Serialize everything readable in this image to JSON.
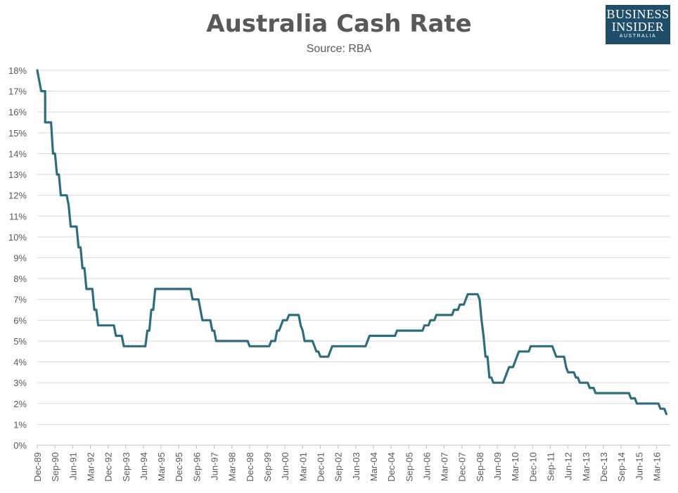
{
  "chart_data": {
    "type": "line",
    "title": "Australia Cash Rate",
    "subtitle": "Source: RBA",
    "xlabel": "",
    "ylabel": "",
    "ylim": [
      0,
      18
    ],
    "yticks": [
      "0%",
      "1%",
      "2%",
      "3%",
      "4%",
      "5%",
      "6%",
      "7%",
      "8%",
      "9%",
      "10%",
      "11%",
      "12%",
      "13%",
      "14%",
      "15%",
      "16%",
      "17%",
      "18%"
    ],
    "xticks": [
      "Dec-89",
      "Sep-90",
      "Jun-91",
      "Mar-92",
      "Dec-92",
      "Sep-93",
      "Jun-94",
      "Mar-95",
      "Dec-95",
      "Sep-96",
      "Jun-97",
      "Mar-98",
      "Dec-98",
      "Sep-99",
      "Jun-00",
      "Mar-01",
      "Dec-01",
      "Sep-02",
      "Jun-03",
      "Mar-04",
      "Dec-04",
      "Sep-05",
      "Jun-06",
      "Mar-07",
      "Dec-07",
      "Sep-08",
      "Jun-09",
      "Mar-10",
      "Dec-10",
      "Sep-11",
      "Jun-12",
      "Mar-13",
      "Dec-13",
      "Sep-14",
      "Jun-15",
      "Mar-16"
    ],
    "grid": true,
    "legend": "none",
    "line_color": "#2e6d7b",
    "series": [
      {
        "points": [
          [
            "Dec-89",
            18.0
          ],
          [
            "Jan-90",
            17.5
          ],
          [
            "Feb-90",
            17.0
          ],
          [
            "Apr-90",
            17.0
          ],
          [
            "Apr-90",
            15.5
          ],
          [
            "Jul-90",
            15.5
          ],
          [
            "Aug-90",
            14.0
          ],
          [
            "Sep-90",
            14.0
          ],
          [
            "Oct-90",
            13.0
          ],
          [
            "Nov-90",
            13.0
          ],
          [
            "Dec-90",
            12.0
          ],
          [
            "Mar-91",
            12.0
          ],
          [
            "Apr-91",
            11.5
          ],
          [
            "May-91",
            10.5
          ],
          [
            "Aug-91",
            10.5
          ],
          [
            "Sep-91",
            9.5
          ],
          [
            "Oct-91",
            9.5
          ],
          [
            "Nov-91",
            8.5
          ],
          [
            "Dec-91",
            8.5
          ],
          [
            "Jan-92",
            7.5
          ],
          [
            "Apr-92",
            7.5
          ],
          [
            "May-92",
            6.5
          ],
          [
            "Jun-92",
            6.5
          ],
          [
            "Jul-92",
            5.75
          ],
          [
            "Dec-92",
            5.75
          ],
          [
            "Mar-93",
            5.75
          ],
          [
            "Apr-93",
            5.25
          ],
          [
            "Jul-93",
            5.25
          ],
          [
            "Aug-93",
            4.75
          ],
          [
            "Jul-94",
            4.75
          ],
          [
            "Aug-94",
            5.5
          ],
          [
            "Sep-94",
            5.5
          ],
          [
            "Oct-94",
            6.5
          ],
          [
            "Nov-94",
            6.5
          ],
          [
            "Dec-94",
            7.5
          ],
          [
            "Jun-96",
            7.5
          ],
          [
            "Jul-96",
            7.0
          ],
          [
            "Oct-96",
            7.0
          ],
          [
            "Nov-96",
            6.5
          ],
          [
            "Dec-96",
            6.0
          ],
          [
            "Apr-97",
            6.0
          ],
          [
            "May-97",
            5.5
          ],
          [
            "Jun-97",
            5.5
          ],
          [
            "Jul-97",
            5.0
          ],
          [
            "Nov-98",
            5.0
          ],
          [
            "Dec-98",
            4.75
          ],
          [
            "Oct-99",
            4.75
          ],
          [
            "Nov-99",
            5.0
          ],
          [
            "Jan-00",
            5.0
          ],
          [
            "Feb-00",
            5.5
          ],
          [
            "Mar-00",
            5.5
          ],
          [
            "Apr-00",
            5.75
          ],
          [
            "May-00",
            6.0
          ],
          [
            "Jul-00",
            6.0
          ],
          [
            "Aug-00",
            6.25
          ],
          [
            "Jan-01",
            6.25
          ],
          [
            "Feb-01",
            5.75
          ],
          [
            "Mar-01",
            5.5
          ],
          [
            "Apr-01",
            5.0
          ],
          [
            "Aug-01",
            5.0
          ],
          [
            "Sep-01",
            4.75
          ],
          [
            "Oct-01",
            4.5
          ],
          [
            "Nov-01",
            4.5
          ],
          [
            "Dec-01",
            4.25
          ],
          [
            "Apr-02",
            4.25
          ],
          [
            "May-02",
            4.5
          ],
          [
            "Jun-02",
            4.75
          ],
          [
            "Nov-03",
            4.75
          ],
          [
            "Dec-03",
            5.0
          ],
          [
            "Jan-04",
            5.25
          ],
          [
            "Feb-05",
            5.25
          ],
          [
            "Mar-05",
            5.5
          ],
          [
            "Apr-06",
            5.5
          ],
          [
            "May-06",
            5.75
          ],
          [
            "Jul-06",
            5.75
          ],
          [
            "Aug-06",
            6.0
          ],
          [
            "Oct-06",
            6.0
          ],
          [
            "Nov-06",
            6.25
          ],
          [
            "Jul-07",
            6.25
          ],
          [
            "Aug-07",
            6.5
          ],
          [
            "Oct-07",
            6.5
          ],
          [
            "Nov-07",
            6.75
          ],
          [
            "Jan-08",
            6.75
          ],
          [
            "Feb-08",
            7.0
          ],
          [
            "Mar-08",
            7.25
          ],
          [
            "Aug-08",
            7.25
          ],
          [
            "Sep-08",
            7.0
          ],
          [
            "Oct-08",
            6.0
          ],
          [
            "Nov-08",
            5.25
          ],
          [
            "Dec-08",
            4.25
          ],
          [
            "Jan-09",
            4.25
          ],
          [
            "Feb-09",
            3.25
          ],
          [
            "Mar-09",
            3.25
          ],
          [
            "Apr-09",
            3.0
          ],
          [
            "Sep-09",
            3.0
          ],
          [
            "Oct-09",
            3.25
          ],
          [
            "Nov-09",
            3.5
          ],
          [
            "Dec-09",
            3.75
          ],
          [
            "Feb-10",
            3.75
          ],
          [
            "Mar-10",
            4.0
          ],
          [
            "Apr-10",
            4.25
          ],
          [
            "May-10",
            4.5
          ],
          [
            "Oct-10",
            4.5
          ],
          [
            "Nov-10",
            4.75
          ],
          [
            "Oct-11",
            4.75
          ],
          [
            "Nov-11",
            4.5
          ],
          [
            "Dec-11",
            4.25
          ],
          [
            "Apr-12",
            4.25
          ],
          [
            "May-12",
            3.75
          ],
          [
            "Jun-12",
            3.5
          ],
          [
            "Sep-12",
            3.5
          ],
          [
            "Oct-12",
            3.25
          ],
          [
            "Nov-12",
            3.25
          ],
          [
            "Dec-12",
            3.0
          ],
          [
            "Apr-13",
            3.0
          ],
          [
            "May-13",
            2.75
          ],
          [
            "Jul-13",
            2.75
          ],
          [
            "Aug-13",
            2.5
          ],
          [
            "Jan-15",
            2.5
          ],
          [
            "Feb-15",
            2.25
          ],
          [
            "Apr-15",
            2.25
          ],
          [
            "May-15",
            2.0
          ],
          [
            "Apr-16",
            2.0
          ],
          [
            "May-16",
            1.75
          ],
          [
            "Jul-16",
            1.75
          ],
          [
            "Aug-16",
            1.5
          ]
        ]
      }
    ]
  },
  "logo": {
    "line1": "BUSINESS",
    "line2": "INSIDER",
    "line3": "AUSTRALIA",
    "color": "#1f4e6b"
  }
}
